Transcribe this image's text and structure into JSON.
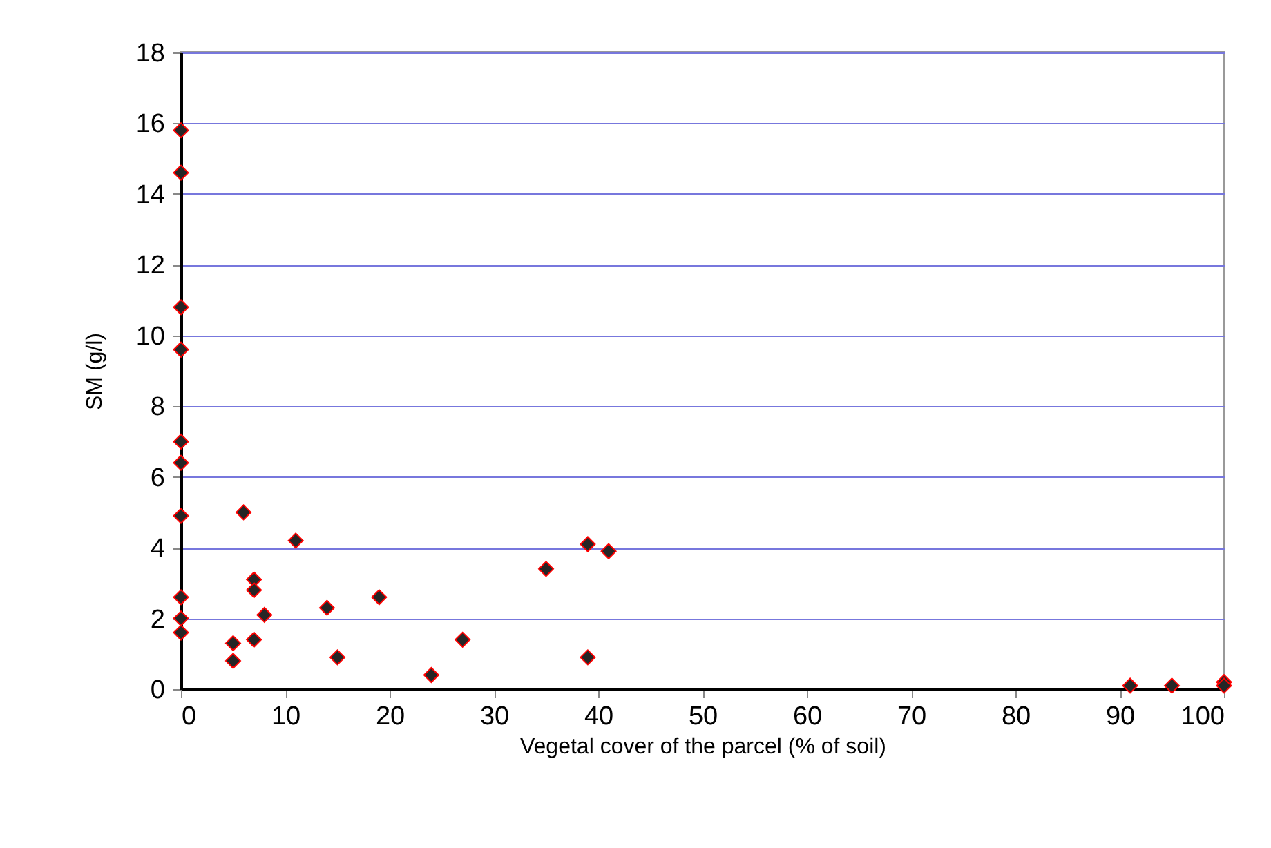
{
  "chart_data": {
    "type": "scatter",
    "xlabel": "Vegetal cover of the parcel (% of soil)",
    "ylabel": "SM (g/l)",
    "x": [
      0,
      0,
      0,
      0,
      0,
      0,
      0,
      0,
      0,
      0,
      5,
      5,
      6,
      7,
      7,
      7,
      8,
      11,
      14,
      15,
      19,
      24,
      27,
      35,
      39,
      39,
      41,
      91,
      95,
      100,
      100
    ],
    "series": [
      {
        "color": "#262626",
        "values": [
          15.8,
          14.6,
          10.8,
          9.6,
          7.0,
          6.4,
          4.9,
          2.6,
          2.0,
          1.6,
          1.3,
          0.8,
          5.0,
          3.1,
          2.8,
          1.4,
          2.1,
          4.2,
          2.3,
          0.9,
          2.6,
          0.4,
          1.4,
          3.4,
          4.1,
          0.9,
          3.9,
          0.1,
          0.1,
          0.2,
          0.1
        ]
      }
    ],
    "xlim": [
      0,
      100
    ],
    "xticks": [
      0,
      10,
      20,
      30,
      40,
      50,
      60,
      70,
      80,
      90,
      100
    ],
    "ylim": [
      0,
      18
    ],
    "yticks": [
      0,
      2,
      4,
      6,
      8,
      10,
      12,
      14,
      16,
      18
    ],
    "grid": "y",
    "marker": "diamond",
    "legend": false
  }
}
